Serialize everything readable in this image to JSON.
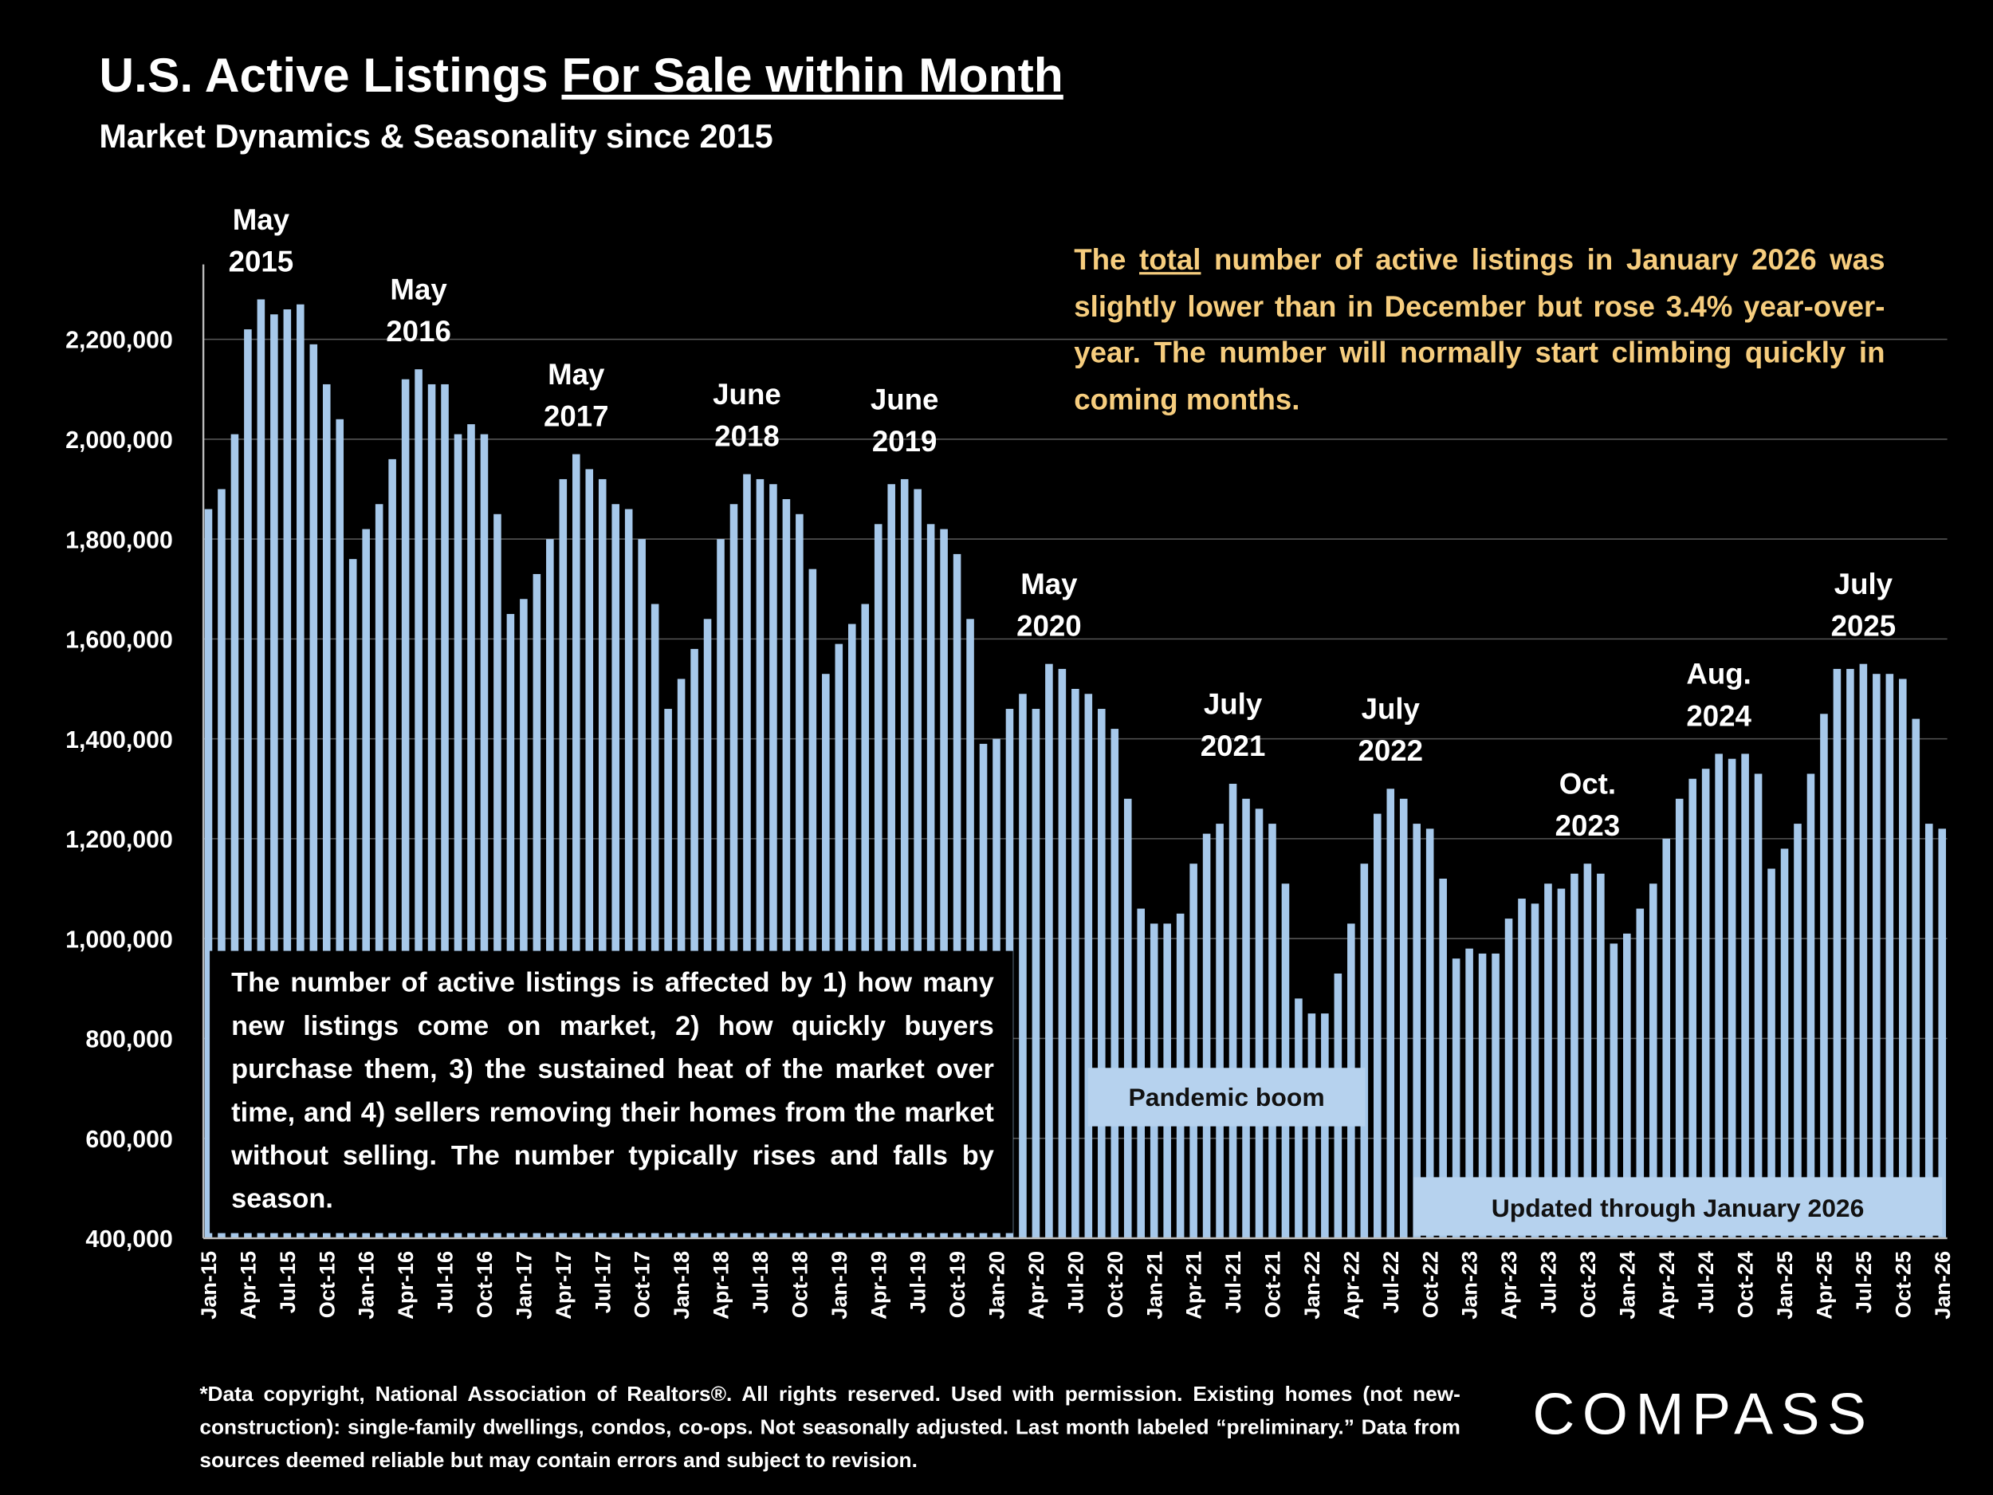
{
  "chart_data": {
    "type": "bar",
    "title": "U.S. Active Listings",
    "title_underlined": "For Sale within Month",
    "subtitle": "Market Dynamics & Seasonality since 2015",
    "color": "#a6c8ea",
    "ylim": [
      400000,
      2350000
    ],
    "yticks": [
      {
        "value": 400000,
        "label": "400,000"
      },
      {
        "value": 600000,
        "label": "600,000"
      },
      {
        "value": 800000,
        "label": "800,000"
      },
      {
        "value": 1000000,
        "label": "1,000,000"
      },
      {
        "value": 1200000,
        "label": "1,200,000"
      },
      {
        "value": 1400000,
        "label": "1,400,000"
      },
      {
        "value": 1600000,
        "label": "1,600,000"
      },
      {
        "value": 1800000,
        "label": "1,800,000"
      },
      {
        "value": 2000000,
        "label": "2,000,000"
      },
      {
        "value": 2200000,
        "label": "2,200,000"
      }
    ],
    "grid": true,
    "categories": [
      "Jan-15",
      null,
      null,
      "Apr-15",
      null,
      null,
      "Jul-15",
      null,
      null,
      "Oct-15",
      null,
      null,
      "Jan-16",
      null,
      null,
      "Apr-16",
      null,
      null,
      "Jul-16",
      null,
      null,
      "Oct-16",
      null,
      null,
      "Jan-17",
      null,
      null,
      "Apr-17",
      null,
      null,
      "Jul-17",
      null,
      null,
      "Oct-17",
      null,
      null,
      "Jan-18",
      null,
      null,
      "Apr-18",
      null,
      null,
      "Jul-18",
      null,
      null,
      "Oct-18",
      null,
      null,
      "Jan-19",
      null,
      null,
      "Apr-19",
      null,
      null,
      "Jul-19",
      null,
      null,
      "Oct-19",
      null,
      null,
      "Jan-20",
      null,
      null,
      "Apr-20",
      null,
      null,
      "Jul-20",
      null,
      null,
      "Oct-20",
      null,
      null,
      "Jan-21",
      null,
      null,
      "Apr-21",
      null,
      null,
      "Jul-21",
      null,
      null,
      "Oct-21",
      null,
      null,
      "Jan-22",
      null,
      null,
      "Apr-22",
      null,
      null,
      "Jul-22",
      null,
      null,
      "Oct-22",
      null,
      null,
      "Jan-23",
      null,
      null,
      "Apr-23",
      null,
      null,
      "Jul-23",
      null,
      null,
      "Oct-23",
      null,
      null,
      "Jan-24",
      null,
      null,
      "Apr-24",
      null,
      null,
      "Jul-24",
      null,
      null,
      "Oct-24",
      null,
      null,
      "Jan-25",
      null,
      null,
      "Apr-25",
      null,
      null,
      "Jul-25",
      null,
      null,
      "Oct-25",
      null,
      null,
      "Jan-26"
    ],
    "values": [
      1860000,
      1900000,
      2010000,
      2220000,
      2280000,
      2250000,
      2260000,
      2270000,
      2190000,
      2110000,
      2040000,
      1760000,
      1820000,
      1870000,
      1960000,
      2120000,
      2140000,
      2110000,
      2110000,
      2010000,
      2030000,
      2010000,
      1850000,
      1650000,
      1680000,
      1730000,
      1800000,
      1920000,
      1970000,
      1940000,
      1920000,
      1870000,
      1860000,
      1800000,
      1670000,
      1460000,
      1520000,
      1580000,
      1640000,
      1800000,
      1870000,
      1930000,
      1920000,
      1910000,
      1880000,
      1850000,
      1740000,
      1530000,
      1590000,
      1630000,
      1670000,
      1830000,
      1910000,
      1920000,
      1900000,
      1830000,
      1820000,
      1770000,
      1640000,
      1390000,
      1400000,
      1460000,
      1490000,
      1460000,
      1550000,
      1540000,
      1500000,
      1490000,
      1460000,
      1420000,
      1280000,
      1060000,
      1030000,
      1030000,
      1050000,
      1150000,
      1210000,
      1230000,
      1310000,
      1280000,
      1260000,
      1230000,
      1110000,
      880000,
      850000,
      850000,
      930000,
      1030000,
      1150000,
      1250000,
      1300000,
      1280000,
      1230000,
      1220000,
      1120000,
      960000,
      980000,
      970000,
      970000,
      1040000,
      1080000,
      1070000,
      1110000,
      1100000,
      1130000,
      1150000,
      1130000,
      990000,
      1010000,
      1060000,
      1110000,
      1200000,
      1280000,
      1320000,
      1340000,
      1370000,
      1360000,
      1370000,
      1330000,
      1140000,
      1180000,
      1230000,
      1330000,
      1450000,
      1540000,
      1540000,
      1550000,
      1530000,
      1530000,
      1520000,
      1440000,
      1230000,
      1220000
    ],
    "annotations": [
      "May 2015",
      "May 2016",
      "May 2017",
      "June 2018",
      "June 2019",
      "May 2020",
      "July 2021",
      "July 2022",
      "Oct. 2023",
      "Aug. 2024",
      "July 2025"
    ],
    "note_before": "The",
    "note_underlined": "total",
    "note_after": "number of active listings in January 2026 was slightly lower than in December but rose 3.4% year-over-year. The number will normally start climbing quickly in coming months.",
    "explanation": "The number of active listings is affected by 1) how many new listings come on market, 2) how quickly buyers purchase them, 3) the sustained heat of the market over time, and 4) sellers removing their homes from the market without selling. The number typically rises and falls by season.",
    "pandemic_label": "Pandemic boom",
    "updated_label": "Updated through January 2026",
    "footnote": "*Data copyright, National Association of Realtors®. All rights reserved. Used with permission. Existing homes (not new-construction): single-family dwellings, condos, co-ops. Not seasonally adjusted. Last month labeled “preliminary.” Data from sources deemed reliable but may contain errors and subject to revision.",
    "brand": "COMPASS"
  }
}
